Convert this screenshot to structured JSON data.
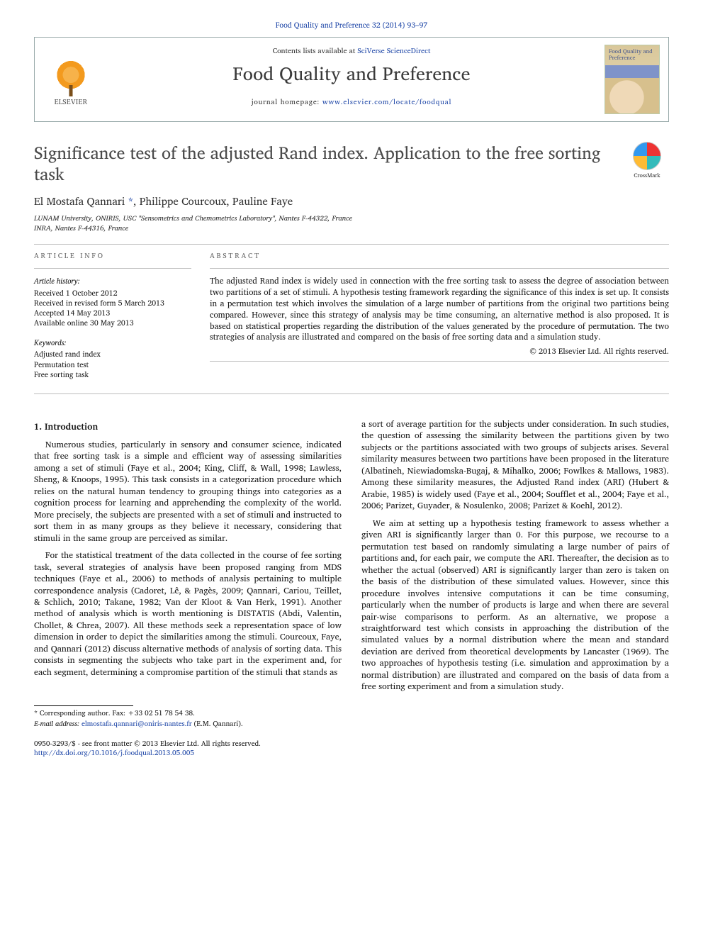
{
  "running_head": "Food Quality and Preference 32 (2014) 93–97",
  "masthead": {
    "publisher_name": "ELSEVIER",
    "contents_line_pre": "Contents lists available at ",
    "contents_line_link": "SciVerse ScienceDirect",
    "journal_name": "Food Quality and Preference",
    "homepage_pre": "journal homepage: ",
    "homepage_link": "www.elsevier.com/locate/foodqual",
    "cover_title": "Food Quality and Preference"
  },
  "title": "Significance test of the adjusted Rand index. Application to the free sorting task",
  "crossmark_label": "CrossMark",
  "authors": {
    "list": "El Mostafa Qannari ",
    "corr_mark": "*",
    "rest": ", Philippe Courcoux, Pauline Faye"
  },
  "affiliations": [
    "LUNAM University, ONIRIS, USC \"Sensometrics and Chemometrics Laboratory\", Nantes F-44322, France",
    "INRA, Nantes F-44316, France"
  ],
  "article_info": {
    "head": "ARTICLE INFO",
    "history_head": "Article history:",
    "history": [
      "Received 1 October 2012",
      "Received in revised form 5 March 2013",
      "Accepted 14 May 2013",
      "Available online 30 May 2013"
    ],
    "keywords_head": "Keywords:",
    "keywords": [
      "Adjusted rand index",
      "Permutation test",
      "Free sorting task"
    ]
  },
  "abstract": {
    "head": "ABSTRACT",
    "text": "The adjusted Rand index is widely used in connection with the free sorting task to assess the degree of association between two partitions of a set of stimuli. A hypothesis testing framework regarding the significance of this index is set up. It consists in a permutation test which involves the simulation of a large number of partitions from the original two partitions being compared. However, since this strategy of analysis may be time consuming, an alternative method is also proposed. It is based on statistical properties regarding the distribution of the values generated by the procedure of permutation. The two strategies of analysis are illustrated and compared on the basis of free sorting data and a simulation study.",
    "copyright": "© 2013 Elsevier Ltd. All rights reserved."
  },
  "sections": {
    "intro_head": "1. Introduction",
    "intro_p": [
      "Numerous studies, particularly in sensory and consumer science, indicated that free sorting task is a simple and efficient way of assessing similarities among a set of stimuli (Faye et al., 2004; King, Cliff, & Wall, 1998; Lawless, Sheng, & Knoops, 1995). This task consists in a categorization procedure which relies on the natural human tendency to grouping things into categories as a cognition process for learning and apprehending the complexity of the world. More precisely, the subjects are presented with a set of stimuli and instructed to sort them in as many groups as they believe it necessary, considering that stimuli in the same group are perceived as similar.",
      "For the statistical treatment of the data collected in the course of fee sorting task, several strategies of analysis have been proposed ranging from MDS techniques (Faye et al., 2006) to methods of analysis pertaining to multiple correspondence analysis (Cadoret, Lê, & Pagès, 2009; Qannari, Cariou, Teillet, & Schlich, 2010; Takane, 1982; Van der Kloot & Van Herk, 1991). Another method of analysis which is worth mentioning is DISTATIS (Abdi, Valentin, Chollet, & Chrea, 2007). All these methods seek a representation space of low dimension in order to depict the similarities among the stimuli. Courcoux, Faye, and Qannari (2012) discuss alternative methods of analysis of sorting data. This consists in segmenting the subjects who take part in the experiment and, for each segment, determining a compromise partition of the stimuli that stands as",
      "a sort of average partition for the subjects under consideration. In such studies, the question of assessing the similarity between the partitions given by two subjects or the partitions associated with two groups of subjects arises. Several similarity measures between two partitions have been proposed in the literature (Albatineh, Niewiadomska-Bugaj, & Mihalko, 2006; Fowlkes & Mallows, 1983). Among these similarity measures, the Adjusted Rand index (ARI) (Hubert & Arabie, 1985) is widely used (Faye et al., 2004; Soufflet et al., 2004; Faye et al., 2006; Parizet, Guyader, & Nosulenko, 2008; Parizet & Koehl, 2012).",
      "We aim at setting up a hypothesis testing framework to assess whether a given ARI is significantly larger than 0. For this purpose, we recourse to a permutation test based on randomly simulating a large number of pairs of partitions and, for each pair, we compute the ARI. Thereafter, the decision as to whether the actual (observed) ARI is significantly larger than zero is taken on the basis of the distribution of these simulated values. However, since this procedure involves intensive computations it can be time consuming, particularly when the number of products is large and when there are several pair-wise comparisons to perform. As an alternative, we propose a straightforward test which consists in approaching the distribution of the simulated values by a normal distribution where the mean and standard deviation are derived from theoretical developments by Lancaster (1969). The two approaches of hypothesis testing (i.e. simulation and approximation by a normal distribution) are illustrated and compared on the basis of data from a free sorting experiment and from a simulation study."
    ]
  },
  "footnotes": {
    "corresponding": "* Corresponding author. Fax: +33 02 51 78 54 38.",
    "email_label": "E-mail address:",
    "email": "elmostafa.qannari@oniris-nantes.fr",
    "email_who": "(E.M. Qannari)."
  },
  "imprint": {
    "line1": "0950-3293/$ - see front matter © 2013 Elsevier Ltd. All rights reserved.",
    "doi": "http://dx.doi.org/10.1016/j.foodqual.2013.05.005"
  }
}
